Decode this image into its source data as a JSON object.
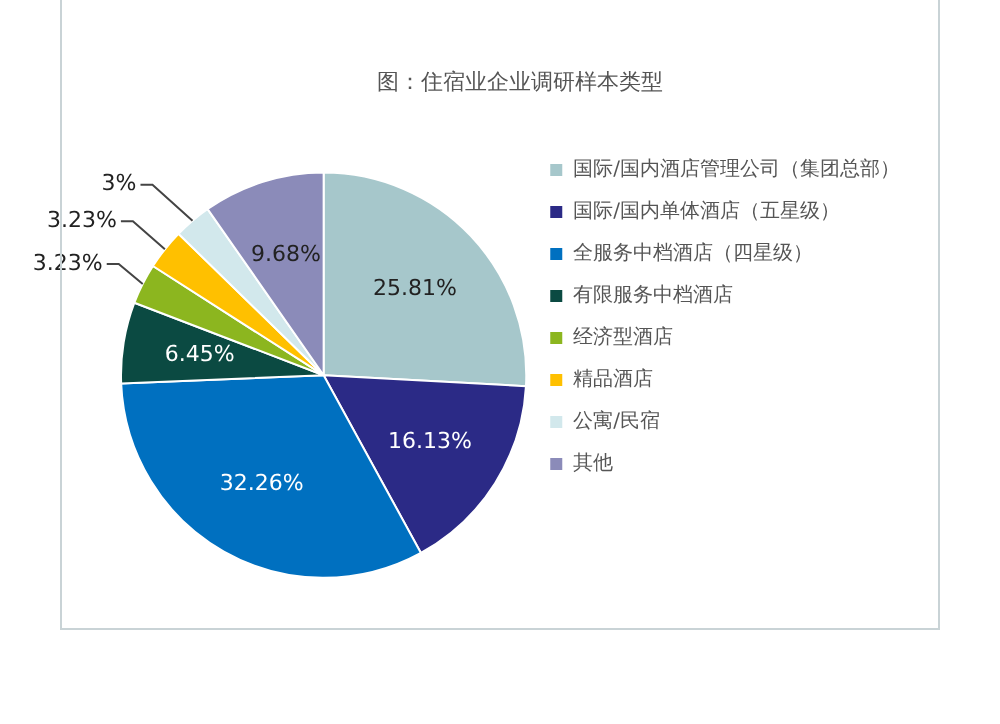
{
  "chart_data": {
    "type": "pie",
    "title": "图：住宿业企业调研样本类型",
    "categories": [
      "国际/国内酒店管理公司（集团总部）",
      "国际/国内单体酒店（五星级）",
      "全服务中档酒店（四星级）",
      "有限服务中档酒店",
      "经济型酒店",
      "精品酒店",
      "公寓/民宿",
      "其他"
    ],
    "values": [
      25.81,
      16.13,
      32.26,
      6.45,
      3.23,
      3.23,
      3,
      9.68
    ],
    "colors": [
      "#a6c7cb",
      "#2b2a86",
      "#0070c0",
      "#0b4a42",
      "#8cb61f",
      "#ffc000",
      "#d2e8ec",
      "#8b8bb9"
    ],
    "value_labels": [
      "25.81%",
      "16.13%",
      "32.26%",
      "6.45%",
      "3.23%",
      "3.23%",
      "3%",
      "9.68%"
    ],
    "legend": "right"
  }
}
